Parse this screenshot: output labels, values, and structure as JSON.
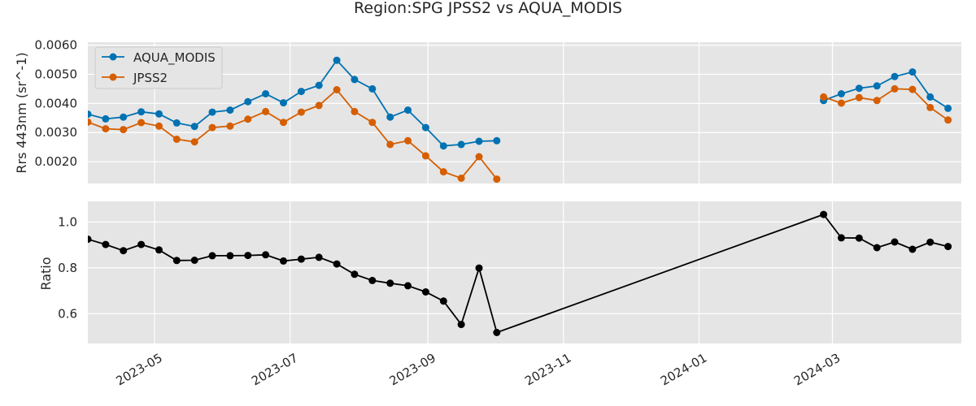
{
  "title": "Region:SPG JPSS2 vs AQUA_MODIS",
  "chart_data": [
    {
      "type": "line",
      "ylabel": "Rrs 443nm (sr^-1)",
      "xlabel": "",
      "ylim": [
        0.00125,
        0.0061
      ],
      "yticks": [
        "0.0020",
        "0.0030",
        "0.0040",
        "0.0050",
        "0.0060"
      ],
      "ytick_values": [
        0.002,
        0.003,
        0.004,
        0.005,
        0.006
      ],
      "xlim": [
        "2023-04-01",
        "2024-04-28"
      ],
      "grid": true,
      "legend": "top-left",
      "series": [
        {
          "name": "AQUA_MODIS",
          "color": "#0072b2",
          "x": [
            "2023-04-01",
            "2023-04-09",
            "2023-04-17",
            "2023-04-25",
            "2023-05-03",
            "2023-05-11",
            "2023-05-19",
            "2023-05-27",
            "2023-06-04",
            "2023-06-12",
            "2023-06-20",
            "2023-06-28",
            "2023-07-06",
            "2023-07-14",
            "2023-07-22",
            "2023-07-30",
            "2023-08-07",
            "2023-08-15",
            "2023-08-23",
            "2023-08-31",
            "2023-09-08",
            "2023-09-16",
            "2023-09-24",
            "2023-10-02",
            "2023-10-10",
            "2024-02-26",
            "2024-03-05",
            "2024-03-13",
            "2024-03-21",
            "2024-03-29",
            "2024-04-06",
            "2024-04-14",
            "2024-04-22"
          ],
          "y": [
            0.00363,
            0.00347,
            0.00353,
            0.00371,
            0.00364,
            0.00333,
            0.00321,
            0.0037,
            0.00377,
            0.00406,
            0.00433,
            0.00402,
            0.00441,
            0.00462,
            0.00548,
            0.00482,
            0.0045,
            0.00353,
            0.00377,
            0.00317,
            0.00254,
            0.00259,
            0.0027,
            0.00272,
            null,
            0.0041,
            0.00433,
            0.00452,
            0.0046,
            0.00492,
            0.00508,
            0.00422,
            0.00383
          ]
        },
        {
          "name": "JPSS2",
          "color": "#d55e00",
          "x": [
            "2023-04-01",
            "2023-04-09",
            "2023-04-17",
            "2023-04-25",
            "2023-05-03",
            "2023-05-11",
            "2023-05-19",
            "2023-05-27",
            "2023-06-04",
            "2023-06-12",
            "2023-06-20",
            "2023-06-28",
            "2023-07-06",
            "2023-07-14",
            "2023-07-22",
            "2023-07-30",
            "2023-08-07",
            "2023-08-15",
            "2023-08-23",
            "2023-08-31",
            "2023-09-08",
            "2023-09-16",
            "2023-09-24",
            "2023-10-02",
            "2023-10-10",
            "2024-02-26",
            "2024-03-05",
            "2024-03-13",
            "2024-03-21",
            "2024-03-29",
            "2024-04-06",
            "2024-04-14",
            "2024-04-22"
          ],
          "y": [
            0.00336,
            0.00313,
            0.0031,
            0.00334,
            0.00322,
            0.00277,
            0.00268,
            0.00317,
            0.00322,
            0.00346,
            0.00372,
            0.00335,
            0.0037,
            0.00393,
            0.00447,
            0.00372,
            0.00335,
            0.00259,
            0.00272,
            0.0022,
            0.00165,
            0.00143,
            0.00217,
            0.0014,
            null,
            0.00422,
            0.00401,
            0.0042,
            0.0041,
            0.0045,
            0.00448,
            0.00386,
            0.00343
          ]
        }
      ]
    },
    {
      "type": "line",
      "ylabel": "Ratio",
      "xlabel": "",
      "ylim": [
        0.47,
        1.09
      ],
      "yticks": [
        "0.6",
        "0.8",
        "1.0"
      ],
      "ytick_values": [
        0.6,
        0.8,
        1.0
      ],
      "xlim": [
        "2023-04-01",
        "2024-04-28"
      ],
      "xticks": [
        "2023-05",
        "2023-07",
        "2023-09",
        "2023-11",
        "2024-01",
        "2024-03"
      ],
      "xtick_dates": [
        "2023-05-01",
        "2023-07-01",
        "2023-09-01",
        "2023-11-01",
        "2024-01-01",
        "2024-03-01"
      ],
      "grid": true,
      "series": [
        {
          "color": "#000000",
          "x": [
            "2023-04-01",
            "2023-04-09",
            "2023-04-17",
            "2023-04-25",
            "2023-05-03",
            "2023-05-11",
            "2023-05-19",
            "2023-05-27",
            "2023-06-04",
            "2023-06-12",
            "2023-06-20",
            "2023-06-28",
            "2023-07-06",
            "2023-07-14",
            "2023-07-22",
            "2023-07-30",
            "2023-08-07",
            "2023-08-15",
            "2023-08-23",
            "2023-08-31",
            "2023-09-08",
            "2023-09-16",
            "2023-09-24",
            "2023-10-02",
            "2024-02-26",
            "2024-03-05",
            "2024-03-13",
            "2024-03-21",
            "2024-03-29",
            "2024-04-06",
            "2024-04-14",
            "2024-04-22"
          ],
          "y": [
            0.925,
            0.902,
            0.875,
            0.902,
            0.878,
            0.832,
            0.833,
            0.853,
            0.853,
            0.854,
            0.857,
            0.83,
            0.838,
            0.846,
            0.817,
            0.772,
            0.745,
            0.733,
            0.722,
            0.695,
            0.655,
            0.553,
            0.799,
            0.518,
            1.033,
            0.931,
            0.93,
            0.888,
            0.913,
            0.881,
            0.912,
            0.893
          ]
        }
      ]
    }
  ]
}
